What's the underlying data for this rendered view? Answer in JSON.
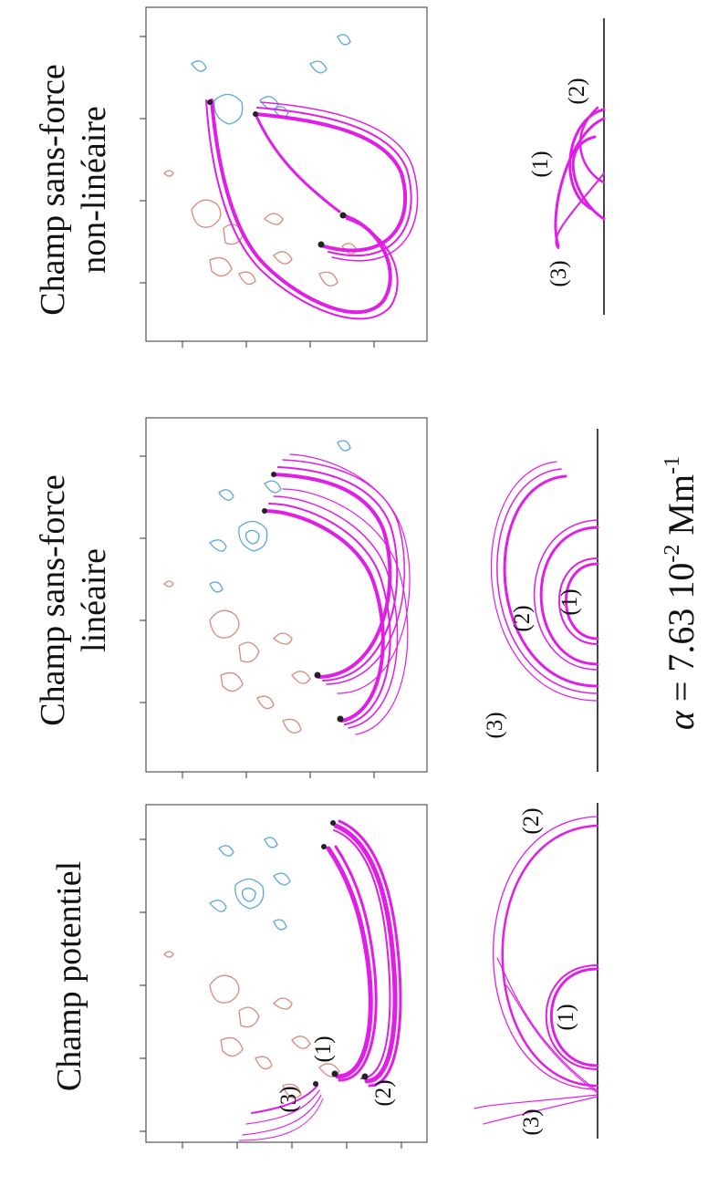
{
  "figure": {
    "panels": [
      {
        "title": "Champ potentiel",
        "top_labels": [
          "(1)",
          "(2)",
          "(3)"
        ],
        "side_labels": [
          "(1)",
          "(2)",
          "(3)"
        ]
      },
      {
        "title_line1": "Champ sans-force",
        "title_line2": "linéaire",
        "side_labels": [
          "(1)",
          "(2)",
          "(3)"
        ]
      },
      {
        "title_line1": "Champ sans-force",
        "title_line2": "non-linéaire",
        "side_labels": [
          "(1)",
          "(2)",
          "(3)"
        ]
      }
    ],
    "alpha_symbol": "α",
    "alpha_value": "= 7.63 10",
    "alpha_exp": "-2",
    "alpha_unit": "Mm",
    "alpha_unit_exp": "-1"
  },
  "colors": {
    "field_lines": "#e01ee6",
    "positive_contours": "#d98a7a",
    "negative_contours": "#5aa7e0",
    "footpoints": "#222222"
  }
}
